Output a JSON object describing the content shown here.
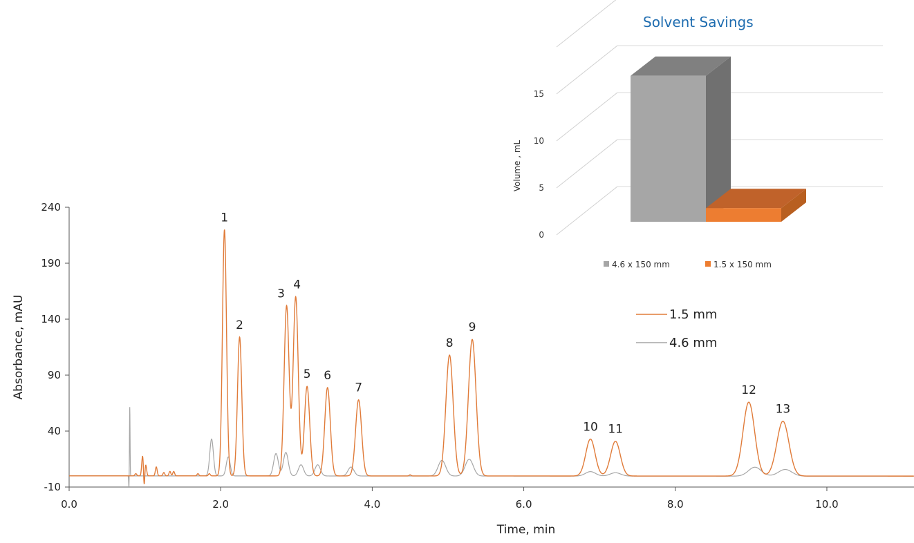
{
  "chart_data": [
    {
      "type": "line",
      "title": "",
      "xlabel": "Time, min",
      "ylabel": "Absorbance, mAU",
      "xlim": [
        0.0,
        10.5
      ],
      "ylim": [
        -10,
        240
      ],
      "x_ticks": [
        "0.0",
        "2.0",
        "4.0",
        "6.0",
        "8.0",
        "10.0"
      ],
      "y_ticks": [
        "240",
        "190",
        "140",
        "90",
        "40",
        "-10"
      ],
      "grid": false,
      "legend_position": "right",
      "series": [
        {
          "name": "1.5 mm",
          "color": "#e07b39",
          "baseline": 0,
          "peaks": [
            {
              "label": "1",
              "x": 2.05,
              "y": 220
            },
            {
              "label": "2",
              "x": 2.25,
              "y": 124
            },
            {
              "label": "3",
              "x": 2.87,
              "y": 152
            },
            {
              "label": "4",
              "x": 2.99,
              "y": 160
            },
            {
              "label": "5",
              "x": 3.14,
              "y": 80
            },
            {
              "label": "6",
              "x": 3.41,
              "y": 79
            },
            {
              "label": "7",
              "x": 3.82,
              "y": 68
            },
            {
              "label": "8",
              "x": 5.02,
              "y": 108
            },
            {
              "label": "9",
              "x": 5.32,
              "y": 122
            },
            {
              "label": "10",
              "x": 6.88,
              "y": 33
            },
            {
              "label": "11",
              "x": 7.21,
              "y": 31
            },
            {
              "label": "12",
              "x": 8.97,
              "y": 66
            },
            {
              "label": "13",
              "x": 9.42,
              "y": 49
            }
          ]
        },
        {
          "name": "4.6 mm",
          "color": "#a6a6a6",
          "baseline": 0
        }
      ],
      "peak_labels": [
        "1",
        "2",
        "3",
        "4",
        "5",
        "6",
        "7",
        "8",
        "9",
        "10",
        "11",
        "12",
        "13"
      ]
    },
    {
      "type": "bar",
      "title": "Solvent Savings",
      "ylabel": "Volume , mL",
      "ylim": [
        0,
        20
      ],
      "y_ticks": [
        "0",
        "5",
        "10",
        "15"
      ],
      "categories": [
        "4.6 x 150 mm",
        "1.5 x 150 mm"
      ],
      "values": [
        16,
        1.5
      ],
      "colors": [
        "#a6a6a6",
        "#ed7d31"
      ],
      "legend_position": "bottom"
    }
  ]
}
